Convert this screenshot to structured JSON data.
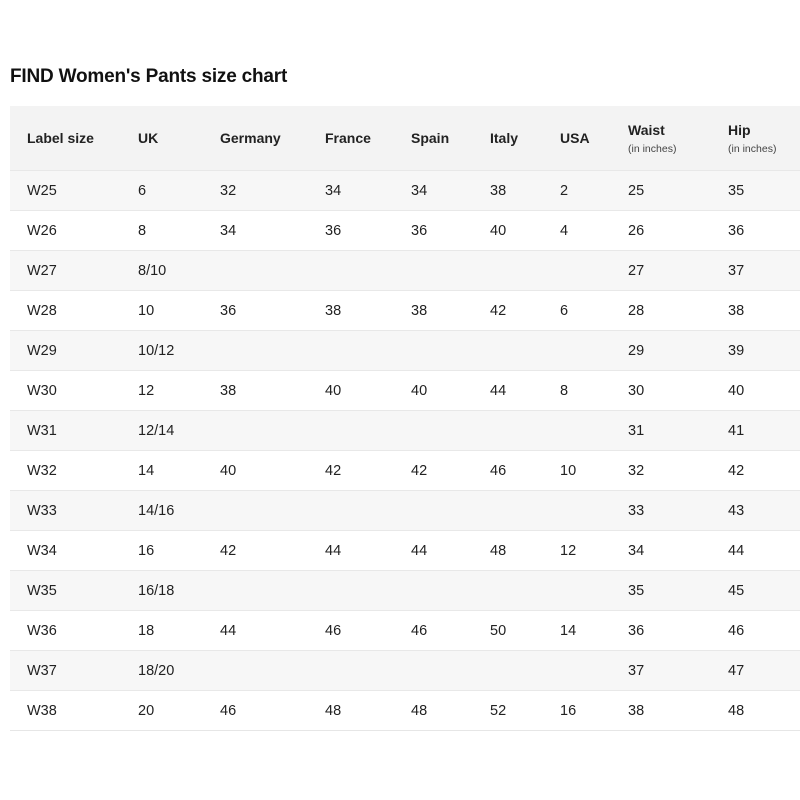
{
  "title": "FIND Women's Pants size chart",
  "headers": [
    {
      "label": "Label size",
      "sub": ""
    },
    {
      "label": "UK",
      "sub": ""
    },
    {
      "label": "Germany",
      "sub": ""
    },
    {
      "label": "France",
      "sub": ""
    },
    {
      "label": "Spain",
      "sub": ""
    },
    {
      "label": "Italy",
      "sub": ""
    },
    {
      "label": "USA",
      "sub": ""
    },
    {
      "label": "Waist",
      "sub": "(in inches)"
    },
    {
      "label": "Hip",
      "sub": "(in inches)"
    }
  ],
  "rows": [
    [
      "W25",
      "6",
      "32",
      "34",
      "34",
      "38",
      "2",
      "25",
      "35"
    ],
    [
      "W26",
      "8",
      "34",
      "36",
      "36",
      "40",
      "4",
      "26",
      "36"
    ],
    [
      "W27",
      "8/10",
      "",
      "",
      "",
      "",
      "",
      "27",
      "37"
    ],
    [
      "W28",
      "10",
      "36",
      "38",
      "38",
      "42",
      "6",
      "28",
      "38"
    ],
    [
      "W29",
      "10/12",
      "",
      "",
      "",
      "",
      "",
      "29",
      "39"
    ],
    [
      "W30",
      "12",
      "38",
      "40",
      "40",
      "44",
      "8",
      "30",
      "40"
    ],
    [
      "W31",
      "12/14",
      "",
      "",
      "",
      "",
      "",
      "31",
      "41"
    ],
    [
      "W32",
      "14",
      "40",
      "42",
      "42",
      "46",
      "10",
      "32",
      "42"
    ],
    [
      "W33",
      "14/16",
      "",
      "",
      "",
      "",
      "",
      "33",
      "43"
    ],
    [
      "W34",
      "16",
      "42",
      "44",
      "44",
      "48",
      "12",
      "34",
      "44"
    ],
    [
      "W35",
      "16/18",
      "",
      "",
      "",
      "",
      "",
      "35",
      "45"
    ],
    [
      "W36",
      "18",
      "44",
      "46",
      "46",
      "50",
      "14",
      "36",
      "46"
    ],
    [
      "W37",
      "18/20",
      "",
      "",
      "",
      "",
      "",
      "37",
      "47"
    ],
    [
      "W38",
      "20",
      "46",
      "48",
      "48",
      "52",
      "16",
      "38",
      "48"
    ]
  ]
}
